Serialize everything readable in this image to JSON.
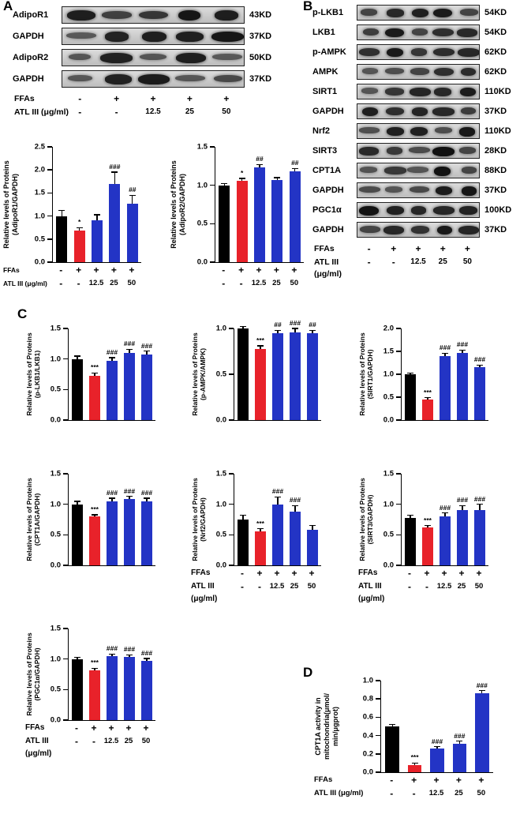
{
  "figure": {
    "panel_labels": {
      "A": "A",
      "B": "B",
      "C": "C",
      "D": "D"
    }
  },
  "style": {
    "black": "#000000",
    "red": "#e8222a",
    "blue": "#2334c5",
    "band": "#111111"
  },
  "blot_panels": [
    {
      "id": "A",
      "rows": [
        {
          "name": "AdipoR1",
          "kd": "43KD"
        },
        {
          "name": "GAPDH",
          "kd": "37KD"
        },
        {
          "name": "AdipoR2",
          "kd": "50KD"
        },
        {
          "name": "GAPDH",
          "kd": "37KD"
        }
      ],
      "treatments": [
        {
          "label": "FFAs",
          "values": [
            "-",
            "+",
            "+",
            "+",
            "+"
          ]
        },
        {
          "label": "ATL III (μg/ml)",
          "values": [
            "-",
            "-",
            "12.5",
            "25",
            "50"
          ]
        }
      ]
    },
    {
      "id": "B",
      "rows": [
        {
          "name": "p-LKB1",
          "kd": "54KD"
        },
        {
          "name": "LKB1",
          "kd": "54KD"
        },
        {
          "name": "p-AMPK",
          "kd": "62KD"
        },
        {
          "name": "AMPK",
          "kd": "62KD"
        },
        {
          "name": "SIRT1",
          "kd": "110KD"
        },
        {
          "name": "GAPDH",
          "kd": "37KD"
        },
        {
          "name": "Nrf2",
          "kd": "110KD"
        },
        {
          "name": "SIRT3",
          "kd": "28KD"
        },
        {
          "name": "CPT1A",
          "kd": "88KD"
        },
        {
          "name": "GAPDH",
          "kd": "37KD"
        },
        {
          "name": "PGC1α",
          "kd": "100KD"
        },
        {
          "name": "GAPDH",
          "kd": "37KD"
        }
      ],
      "treatments": [
        {
          "label": "FFAs",
          "values": [
            "-",
            "+",
            "+",
            "+",
            "+"
          ]
        },
        {
          "label": "ATL III",
          "values": [
            "-",
            "-",
            "12.5",
            "25",
            "50"
          ]
        },
        {
          "label": "(μg/ml)",
          "values": []
        }
      ]
    }
  ],
  "chart_data": [
    {
      "id": "adipor1",
      "type": "bar",
      "ylabel": "Relative levels of Proteins (AdipoR1/GAPDH)",
      "ylabel_lines": [
        "Relative levels of Proteins",
        "(AdipoR1/GAPDH)"
      ],
      "ylim": [
        0,
        2.5
      ],
      "yticks": [
        "0.0",
        "0.5",
        "1.0",
        "1.5",
        "2.0",
        "2.5"
      ],
      "categories": [
        "FFAs -",
        "FFAs +",
        "FFAs + ATL III 12.5",
        "FFAs + ATL III 25",
        "FFAs + ATL III 50"
      ],
      "values": [
        1.0,
        0.68,
        0.9,
        1.7,
        1.27
      ],
      "errors": [
        0.12,
        0.07,
        0.13,
        0.25,
        0.18
      ],
      "sig": [
        "",
        "*",
        "",
        "###",
        "##"
      ],
      "bar_colors": [
        "black",
        "red",
        "blue",
        "blue",
        "blue"
      ],
      "xaxis_rows": [
        {
          "label": "FFAs",
          "values": [
            "-",
            "+",
            "+",
            "+",
            "+"
          ]
        },
        {
          "label": "ATL III (μg/ml)",
          "values": [
            "-",
            "-",
            "12.5",
            "25",
            "50"
          ]
        }
      ]
    },
    {
      "id": "adipor2",
      "type": "bar",
      "ylabel": "Relative levels of Proteins (AdipoR2/GAPDH)",
      "ylabel_lines": [
        "Relative levels of Proteins",
        "(AdipoR2/GAPDH)"
      ],
      "ylim": [
        0,
        1.5
      ],
      "yticks": [
        "0.0",
        "0.5",
        "1.0",
        "1.5"
      ],
      "categories": [
        "FFAs -",
        "FFAs +",
        "FFAs + ATL III 12.5",
        "FFAs + ATL III 25",
        "FFAs + ATL III 50"
      ],
      "values": [
        1.0,
        1.06,
        1.23,
        1.07,
        1.18
      ],
      "errors": [
        0.02,
        0.03,
        0.04,
        0.03,
        0.04
      ],
      "sig": [
        "",
        "*",
        "##",
        "",
        "##"
      ],
      "bar_colors": [
        "black",
        "red",
        "blue",
        "blue",
        "blue"
      ],
      "xaxis_rows": [
        {
          "label": "",
          "values": [
            "-",
            "+",
            "+",
            "+",
            "+"
          ]
        },
        {
          "label": "",
          "values": [
            "-",
            "-",
            "12.5",
            "25",
            "50"
          ]
        }
      ]
    },
    {
      "id": "plkb1",
      "type": "bar",
      "ylabel": "Relative levels of Proteins (p-LKB1/LKB1)",
      "ylabel_lines": [
        "Relative levels of Proteins",
        "(p-LKB1/LKB1)"
      ],
      "ylim": [
        0,
        1.5
      ],
      "yticks": [
        "0.0",
        "0.5",
        "1.0",
        "1.5"
      ],
      "categories": [
        "FFAs -",
        "FFAs +",
        "FFAs + ATL III 12.5",
        "FFAs + ATL III 25",
        "FFAs + ATL III 50"
      ],
      "values": [
        1.0,
        0.73,
        0.97,
        1.1,
        1.07
      ],
      "errors": [
        0.05,
        0.04,
        0.05,
        0.06,
        0.06
      ],
      "sig": [
        "",
        "***",
        "###",
        "###",
        "###"
      ],
      "bar_colors": [
        "black",
        "red",
        "blue",
        "blue",
        "blue"
      ]
    },
    {
      "id": "pampk",
      "type": "bar",
      "ylabel": "Relative levels of Proteins (p-AMPK/AMPK)",
      "ylabel_lines": [
        "Relative levels of Proteins",
        "(p-AMPK/AMPK)"
      ],
      "ylim": [
        0,
        1.0
      ],
      "yticks": [
        "0.0",
        "0.5",
        "1.0"
      ],
      "categories": [
        "FFAs -",
        "FFAs +",
        "FFAs + ATL III 12.5",
        "FFAs + ATL III 25",
        "FFAs + ATL III 50"
      ],
      "values": [
        1.0,
        0.78,
        0.95,
        0.96,
        0.95
      ],
      "errors": [
        0.02,
        0.03,
        0.03,
        0.04,
        0.03
      ],
      "sig": [
        "",
        "***",
        "##",
        "###",
        "##"
      ],
      "bar_colors": [
        "black",
        "red",
        "blue",
        "blue",
        "blue"
      ]
    },
    {
      "id": "sirt1",
      "type": "bar",
      "ylabel": "Relative levels of Proteins (SIRT1/GAPDH)",
      "ylabel_lines": [
        "Relative levels of Proteins",
        "(SIRT1/GAPDH)"
      ],
      "ylim": [
        0,
        2.0
      ],
      "yticks": [
        "0.0",
        "0.5",
        "1.0",
        "1.5",
        "2.0"
      ],
      "categories": [
        "FFAs -",
        "FFAs +",
        "FFAs + ATL III 12.5",
        "FFAs + ATL III 25",
        "FFAs + ATL III 50"
      ],
      "values": [
        1.0,
        0.45,
        1.4,
        1.47,
        1.15
      ],
      "errors": [
        0.03,
        0.04,
        0.06,
        0.06,
        0.05
      ],
      "sig": [
        "",
        "***",
        "###",
        "###",
        "###"
      ],
      "bar_colors": [
        "black",
        "red",
        "blue",
        "blue",
        "blue"
      ]
    },
    {
      "id": "cpt1a",
      "type": "bar",
      "ylabel": "Relative levels of Proteins (CPT1A/GAPDH)",
      "ylabel_lines": [
        "Relative levels of Proteins",
        "(CPT1A/GAPDH)"
      ],
      "ylim": [
        0,
        1.5
      ],
      "yticks": [
        "0.0",
        "0.5",
        "1.0",
        "1.5"
      ],
      "categories": [
        "FFAs -",
        "FFAs +",
        "FFAs + ATL III 12.5",
        "FFAs + ATL III 25",
        "FFAs + ATL III 50"
      ],
      "values": [
        1.0,
        0.8,
        1.05,
        1.08,
        1.05
      ],
      "errors": [
        0.05,
        0.03,
        0.05,
        0.05,
        0.05
      ],
      "sig": [
        "",
        "***",
        "###",
        "###",
        "###"
      ],
      "bar_colors": [
        "black",
        "red",
        "blue",
        "blue",
        "blue"
      ]
    },
    {
      "id": "nrf2",
      "type": "bar",
      "ylabel": "Relative levels of Proteins (Nrf2/GAPDH)",
      "ylabel_lines": [
        "Relative levels of Proteins",
        "(Nrf2/GAPDH)"
      ],
      "ylim": [
        0,
        1.5
      ],
      "yticks": [
        "0.0",
        "0.5",
        "1.0",
        "1.5"
      ],
      "categories": [
        "FFAs -",
        "FFAs +",
        "FFAs + ATL III 12.5",
        "FFAs + ATL III 25",
        "FFAs + ATL III 50"
      ],
      "values": [
        0.75,
        0.55,
        1.0,
        0.88,
        0.58
      ],
      "errors": [
        0.07,
        0.05,
        0.12,
        0.1,
        0.07
      ],
      "sig": [
        "",
        "***",
        "###",
        "###",
        ""
      ],
      "bar_colors": [
        "black",
        "red",
        "blue",
        "blue",
        "blue"
      ],
      "xaxis_rows": [
        {
          "label": "FFAs",
          "values": [
            "-",
            "+",
            "+",
            "+",
            "+"
          ]
        },
        {
          "label": "ATL III",
          "values": [
            "-",
            "-",
            "12.5",
            "25",
            "50"
          ]
        },
        {
          "label": "(μg/ml)",
          "values": []
        }
      ]
    },
    {
      "id": "sirt3",
      "type": "bar",
      "ylabel": "Relative levels of Proteins (SIRT3/GAPDH)",
      "ylabel_lines": [
        "Relative levels of Proteins",
        "(SIRT3/GAPDH)"
      ],
      "ylim": [
        0,
        1.5
      ],
      "yticks": [
        "0.0",
        "0.5",
        "1.0",
        "1.5"
      ],
      "categories": [
        "FFAs -",
        "FFAs +",
        "FFAs + ATL III 12.5",
        "FFAs + ATL III 25",
        "FFAs + ATL III 50"
      ],
      "values": [
        0.78,
        0.62,
        0.8,
        0.9,
        0.9
      ],
      "errors": [
        0.04,
        0.03,
        0.06,
        0.08,
        0.1
      ],
      "sig": [
        "",
        "***",
        "###",
        "###",
        "###"
      ],
      "bar_colors": [
        "black",
        "red",
        "blue",
        "blue",
        "blue"
      ],
      "xaxis_rows": [
        {
          "label": "FFAs",
          "values": [
            "-",
            "+",
            "+",
            "+",
            "+"
          ]
        },
        {
          "label": "ATL III",
          "values": [
            "-",
            "-",
            "12.5",
            "25",
            "50"
          ]
        },
        {
          "label": "(μg/ml)",
          "values": []
        }
      ]
    },
    {
      "id": "pgc1a",
      "type": "bar",
      "ylabel": "Relative levels of Proteins (PGC1α/GAPDH)",
      "ylabel_lines": [
        "Relative levels of Proteins",
        "(PGC1α/GAPDH)"
      ],
      "ylim": [
        0,
        1.5
      ],
      "yticks": [
        "0.0",
        "0.5",
        "1.0",
        "1.5"
      ],
      "categories": [
        "FFAs -",
        "FFAs +",
        "FFAs + ATL III 12.5",
        "FFAs + ATL III 25",
        "FFAs + ATL III 50"
      ],
      "values": [
        1.0,
        0.82,
        1.05,
        1.04,
        0.97
      ],
      "errors": [
        0.03,
        0.03,
        0.03,
        0.03,
        0.04
      ],
      "sig": [
        "",
        "***",
        "###",
        "###",
        "###"
      ],
      "bar_colors": [
        "black",
        "red",
        "blue",
        "blue",
        "blue"
      ],
      "xaxis_rows": [
        {
          "label": "FFAs",
          "values": [
            "-",
            "+",
            "+",
            "+",
            "+"
          ]
        },
        {
          "label": "ATL III",
          "values": [
            "-",
            "-",
            "12.5",
            "25",
            "50"
          ]
        },
        {
          "label": "(μg/ml)",
          "values": []
        }
      ]
    },
    {
      "id": "cpt1a_activity",
      "type": "bar",
      "ylabel": "CPT1A activity in mitochondria(μmol/min/μgprot)",
      "ylabel_lines": [
        "CPT1A activity in",
        "mitochondria(μmol/",
        "min/μgprot)"
      ],
      "ylim": [
        0,
        1.0
      ],
      "yticks": [
        "0.0",
        "0.2",
        "0.4",
        "0.6",
        "0.8",
        "1.0"
      ],
      "categories": [
        "FFAs -",
        "FFAs +",
        "FFAs + ATL III 12.5",
        "FFAs + ATL III 25",
        "FFAs + ATL III 50"
      ],
      "values": [
        0.5,
        0.08,
        0.26,
        0.31,
        0.86
      ],
      "errors": [
        0.02,
        0.02,
        0.02,
        0.03,
        0.03
      ],
      "sig": [
        "",
        "***",
        "###",
        "###",
        "###"
      ],
      "bar_colors": [
        "black",
        "red",
        "blue",
        "blue",
        "blue"
      ],
      "xaxis_rows": [
        {
          "label": "FFAs",
          "values": [
            "-",
            "+",
            "+",
            "+",
            "+"
          ]
        },
        {
          "label": "ATL III (μg/ml)",
          "values": [
            "-",
            "-",
            "12.5",
            "25",
            "50"
          ]
        }
      ]
    }
  ]
}
